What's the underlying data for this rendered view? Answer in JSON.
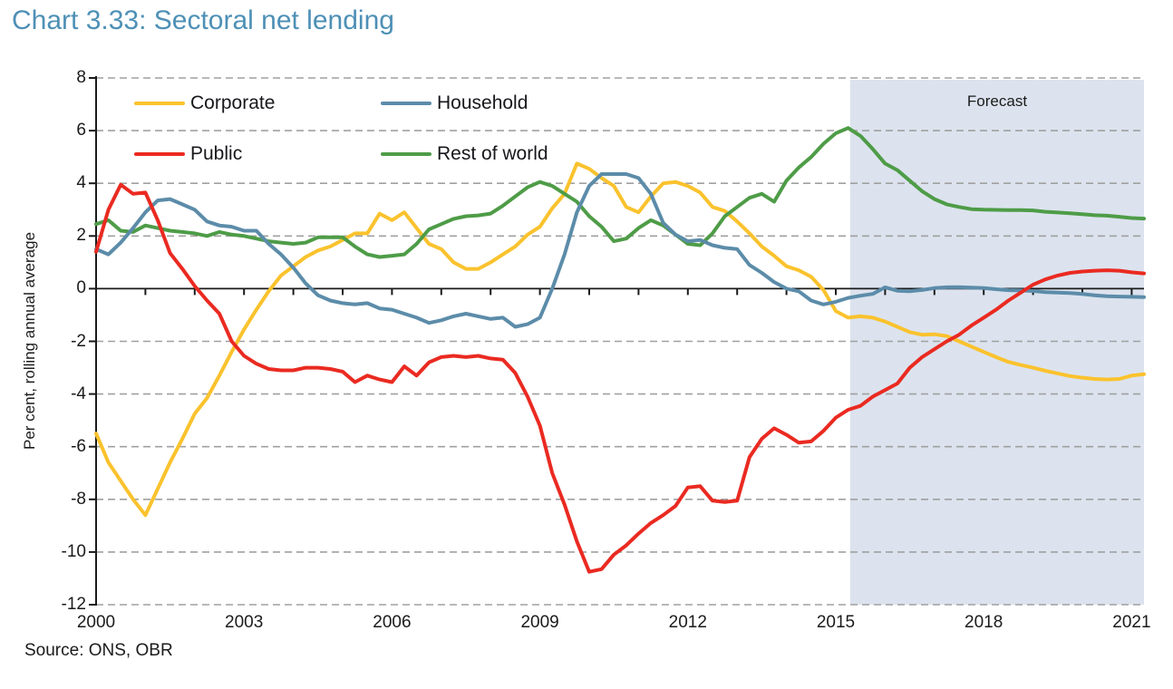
{
  "page": {
    "title": "Chart 3.33: Sectoral net lending",
    "source": "Source: ONS, OBR"
  },
  "colors": {
    "title_blue": "#4e90b6",
    "axis_black": "#1a1a1a",
    "grid_gray": "#a0a0a0",
    "text_dark": "#1b1b1b",
    "forecast_band": "#dce3ee",
    "background": "#ffffff"
  },
  "chart_data": {
    "type": "line",
    "title": "Chart 3.33: Sectoral net lending",
    "xlabel": "",
    "ylabel": "Per cent, rolling annual average",
    "ylim": [
      -12,
      8
    ],
    "y_ticks": [
      8,
      6,
      4,
      2,
      0,
      -2,
      -4,
      -6,
      -8,
      -10,
      -12
    ],
    "x_ticks": [
      2000,
      2003,
      2006,
      2009,
      2012,
      2015,
      2018,
      2021
    ],
    "x_minor_tick_step": 1,
    "x_start": 2000,
    "x_step": 0.25,
    "x_end": 2021.25,
    "grid": "horizontal dashed, zero line solid",
    "legend_position": "inside top-left, two columns",
    "forecast_band": {
      "label": "Forecast",
      "x_from": 2015.29,
      "x_to": 2021.25,
      "color": "#dce3ee"
    },
    "series": [
      {
        "name": "Corporate",
        "color": "#fac22d",
        "values": [
          -5.5,
          -6.6,
          -7.3,
          -8.0,
          -8.6,
          -7.6,
          -6.6,
          -5.7,
          -4.75,
          -4.15,
          -3.3,
          -2.4,
          -1.55,
          -0.8,
          -0.1,
          0.5,
          0.85,
          1.2,
          1.45,
          1.6,
          1.85,
          2.1,
          2.1,
          2.85,
          2.6,
          2.9,
          2.3,
          1.7,
          1.5,
          1.0,
          0.75,
          0.75,
          1.0,
          1.3,
          1.6,
          2.05,
          2.35,
          3.05,
          3.6,
          4.75,
          4.55,
          4.2,
          3.9,
          3.1,
          2.9,
          3.5,
          4.0,
          4.05,
          3.9,
          3.65,
          3.1,
          2.95,
          2.55,
          2.1,
          1.6,
          1.25,
          0.85,
          0.7,
          0.45,
          -0.05,
          -0.85,
          -1.1,
          -1.05,
          -1.1,
          -1.25,
          -1.45,
          -1.65,
          -1.75,
          -1.73,
          -1.8,
          -2.0,
          -2.2,
          -2.4,
          -2.6,
          -2.78,
          -2.9,
          -3.0,
          -3.12,
          -3.22,
          -3.32,
          -3.38,
          -3.43,
          -3.45,
          -3.43,
          -3.3,
          -3.25
        ]
      },
      {
        "name": "Household",
        "color": "#5c8ca9",
        "values": [
          1.5,
          1.3,
          1.75,
          2.3,
          2.9,
          3.35,
          3.4,
          3.2,
          3.0,
          2.55,
          2.4,
          2.35,
          2.2,
          2.2,
          1.7,
          1.3,
          0.8,
          0.2,
          -0.25,
          -0.45,
          -0.55,
          -0.6,
          -0.55,
          -0.75,
          -0.8,
          -0.95,
          -1.1,
          -1.3,
          -1.2,
          -1.05,
          -0.95,
          -1.05,
          -1.15,
          -1.1,
          -1.45,
          -1.35,
          -1.1,
          0.0,
          1.3,
          2.9,
          3.9,
          4.35,
          4.35,
          4.35,
          4.2,
          3.6,
          2.5,
          2.05,
          1.8,
          1.85,
          1.65,
          1.55,
          1.5,
          0.9,
          0.6,
          0.25,
          0.0,
          -0.1,
          -0.45,
          -0.6,
          -0.5,
          -0.35,
          -0.27,
          -0.2,
          0.05,
          -0.08,
          -0.1,
          -0.05,
          0.02,
          0.05,
          0.06,
          0.04,
          0.02,
          -0.02,
          -0.06,
          -0.07,
          -0.09,
          -0.13,
          -0.15,
          -0.17,
          -0.2,
          -0.25,
          -0.29,
          -0.3,
          -0.31,
          -0.32
        ]
      },
      {
        "name": "Public",
        "color": "#ea2a21",
        "values": [
          1.4,
          3.0,
          3.95,
          3.6,
          3.65,
          2.6,
          1.35,
          0.75,
          0.1,
          -0.45,
          -0.95,
          -2.0,
          -2.55,
          -2.85,
          -3.05,
          -3.1,
          -3.1,
          -3.0,
          -3.0,
          -3.05,
          -3.15,
          -3.55,
          -3.3,
          -3.45,
          -3.55,
          -2.95,
          -3.3,
          -2.8,
          -2.6,
          -2.55,
          -2.6,
          -2.55,
          -2.65,
          -2.7,
          -3.2,
          -4.1,
          -5.2,
          -7.0,
          -8.2,
          -9.6,
          -10.75,
          -10.65,
          -10.1,
          -9.75,
          -9.3,
          -8.9,
          -8.6,
          -8.25,
          -7.55,
          -7.5,
          -8.05,
          -8.1,
          -8.05,
          -6.4,
          -5.7,
          -5.3,
          -5.55,
          -5.85,
          -5.8,
          -5.4,
          -4.9,
          -4.6,
          -4.45,
          -4.1,
          -3.85,
          -3.6,
          -3.0,
          -2.6,
          -2.3,
          -2.0,
          -1.75,
          -1.4,
          -1.1,
          -0.8,
          -0.45,
          -0.15,
          0.15,
          0.35,
          0.5,
          0.6,
          0.65,
          0.68,
          0.7,
          0.68,
          0.62,
          0.58
        ]
      },
      {
        "name": "Rest of world",
        "color": "#4e9c47",
        "values": [
          2.45,
          2.6,
          2.2,
          2.15,
          2.4,
          2.3,
          2.2,
          2.15,
          2.1,
          2.0,
          2.15,
          2.05,
          2.0,
          1.9,
          1.8,
          1.75,
          1.7,
          1.75,
          1.95,
          1.95,
          1.95,
          1.6,
          1.3,
          1.2,
          1.25,
          1.3,
          1.7,
          2.25,
          2.45,
          2.65,
          2.75,
          2.78,
          2.85,
          3.15,
          3.5,
          3.85,
          4.05,
          3.9,
          3.6,
          3.3,
          2.75,
          2.35,
          1.8,
          1.9,
          2.3,
          2.6,
          2.4,
          2.05,
          1.7,
          1.65,
          2.1,
          2.75,
          3.1,
          3.45,
          3.6,
          3.3,
          4.1,
          4.6,
          5.0,
          5.5,
          5.9,
          6.1,
          5.8,
          5.3,
          4.75,
          4.5,
          4.1,
          3.7,
          3.4,
          3.2,
          3.1,
          3.02,
          3.0,
          2.99,
          2.98,
          2.98,
          2.97,
          2.92,
          2.89,
          2.86,
          2.83,
          2.79,
          2.77,
          2.73,
          2.68,
          2.66
        ]
      }
    ]
  }
}
